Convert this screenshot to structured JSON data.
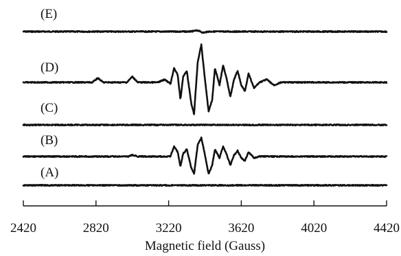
{
  "chart_data": {
    "type": "line",
    "title": "",
    "xlabel": "Magnetic field (Gauss)",
    "ylabel": "",
    "xlim": [
      2420,
      4420
    ],
    "xticks": [
      2420,
      2820,
      3220,
      3620,
      4020,
      4420
    ],
    "grid": false,
    "series": [
      {
        "name": "(E)",
        "points": [
          [
            2420,
            0
          ],
          [
            3340,
            0
          ],
          [
            3380,
            0.8
          ],
          [
            3410,
            -0.8
          ],
          [
            3440,
            0
          ],
          [
            4420,
            0
          ]
        ]
      },
      {
        "name": "(D)",
        "points": [
          [
            2420,
            0
          ],
          [
            2800,
            0
          ],
          [
            2830,
            3
          ],
          [
            2860,
            0
          ],
          [
            2990,
            0
          ],
          [
            3020,
            4
          ],
          [
            3050,
            0
          ],
          [
            3160,
            0
          ],
          [
            3200,
            2
          ],
          [
            3230,
            -1
          ],
          [
            3250,
            10
          ],
          [
            3270,
            5
          ],
          [
            3285,
            -12
          ],
          [
            3300,
            4
          ],
          [
            3320,
            8
          ],
          [
            3345,
            -15
          ],
          [
            3360,
            -22
          ],
          [
            3380,
            14
          ],
          [
            3400,
            26
          ],
          [
            3420,
            2
          ],
          [
            3440,
            -20
          ],
          [
            3460,
            -12
          ],
          [
            3475,
            10
          ],
          [
            3500,
            -2
          ],
          [
            3520,
            12
          ],
          [
            3540,
            2
          ],
          [
            3560,
            -10
          ],
          [
            3580,
            2
          ],
          [
            3600,
            8
          ],
          [
            3620,
            -2
          ],
          [
            3640,
            -6
          ],
          [
            3660,
            6
          ],
          [
            3690,
            -4
          ],
          [
            3720,
            0
          ],
          [
            3760,
            2
          ],
          [
            3800,
            -2
          ],
          [
            3840,
            0
          ],
          [
            4420,
            0
          ]
        ]
      },
      {
        "name": "(C)",
        "points": [
          [
            2420,
            0
          ],
          [
            4420,
            0
          ]
        ]
      },
      {
        "name": "(B)",
        "points": [
          [
            2420,
            0
          ],
          [
            3000,
            0
          ],
          [
            3020,
            1
          ],
          [
            3050,
            0
          ],
          [
            3230,
            0
          ],
          [
            3250,
            7
          ],
          [
            3270,
            3
          ],
          [
            3285,
            -7
          ],
          [
            3300,
            2
          ],
          [
            3320,
            5
          ],
          [
            3345,
            -8
          ],
          [
            3360,
            -12
          ],
          [
            3380,
            8
          ],
          [
            3400,
            13
          ],
          [
            3420,
            1
          ],
          [
            3440,
            -12
          ],
          [
            3460,
            -6
          ],
          [
            3475,
            5
          ],
          [
            3500,
            -1
          ],
          [
            3520,
            7
          ],
          [
            3540,
            1
          ],
          [
            3560,
            -6
          ],
          [
            3580,
            1
          ],
          [
            3600,
            4
          ],
          [
            3620,
            -1
          ],
          [
            3640,
            -3
          ],
          [
            3660,
            3
          ],
          [
            3690,
            -1
          ],
          [
            3720,
            0
          ],
          [
            4420,
            0
          ]
        ]
      },
      {
        "name": "(A)",
        "points": [
          [
            2420,
            0
          ],
          [
            4420,
            0
          ]
        ]
      }
    ]
  }
}
